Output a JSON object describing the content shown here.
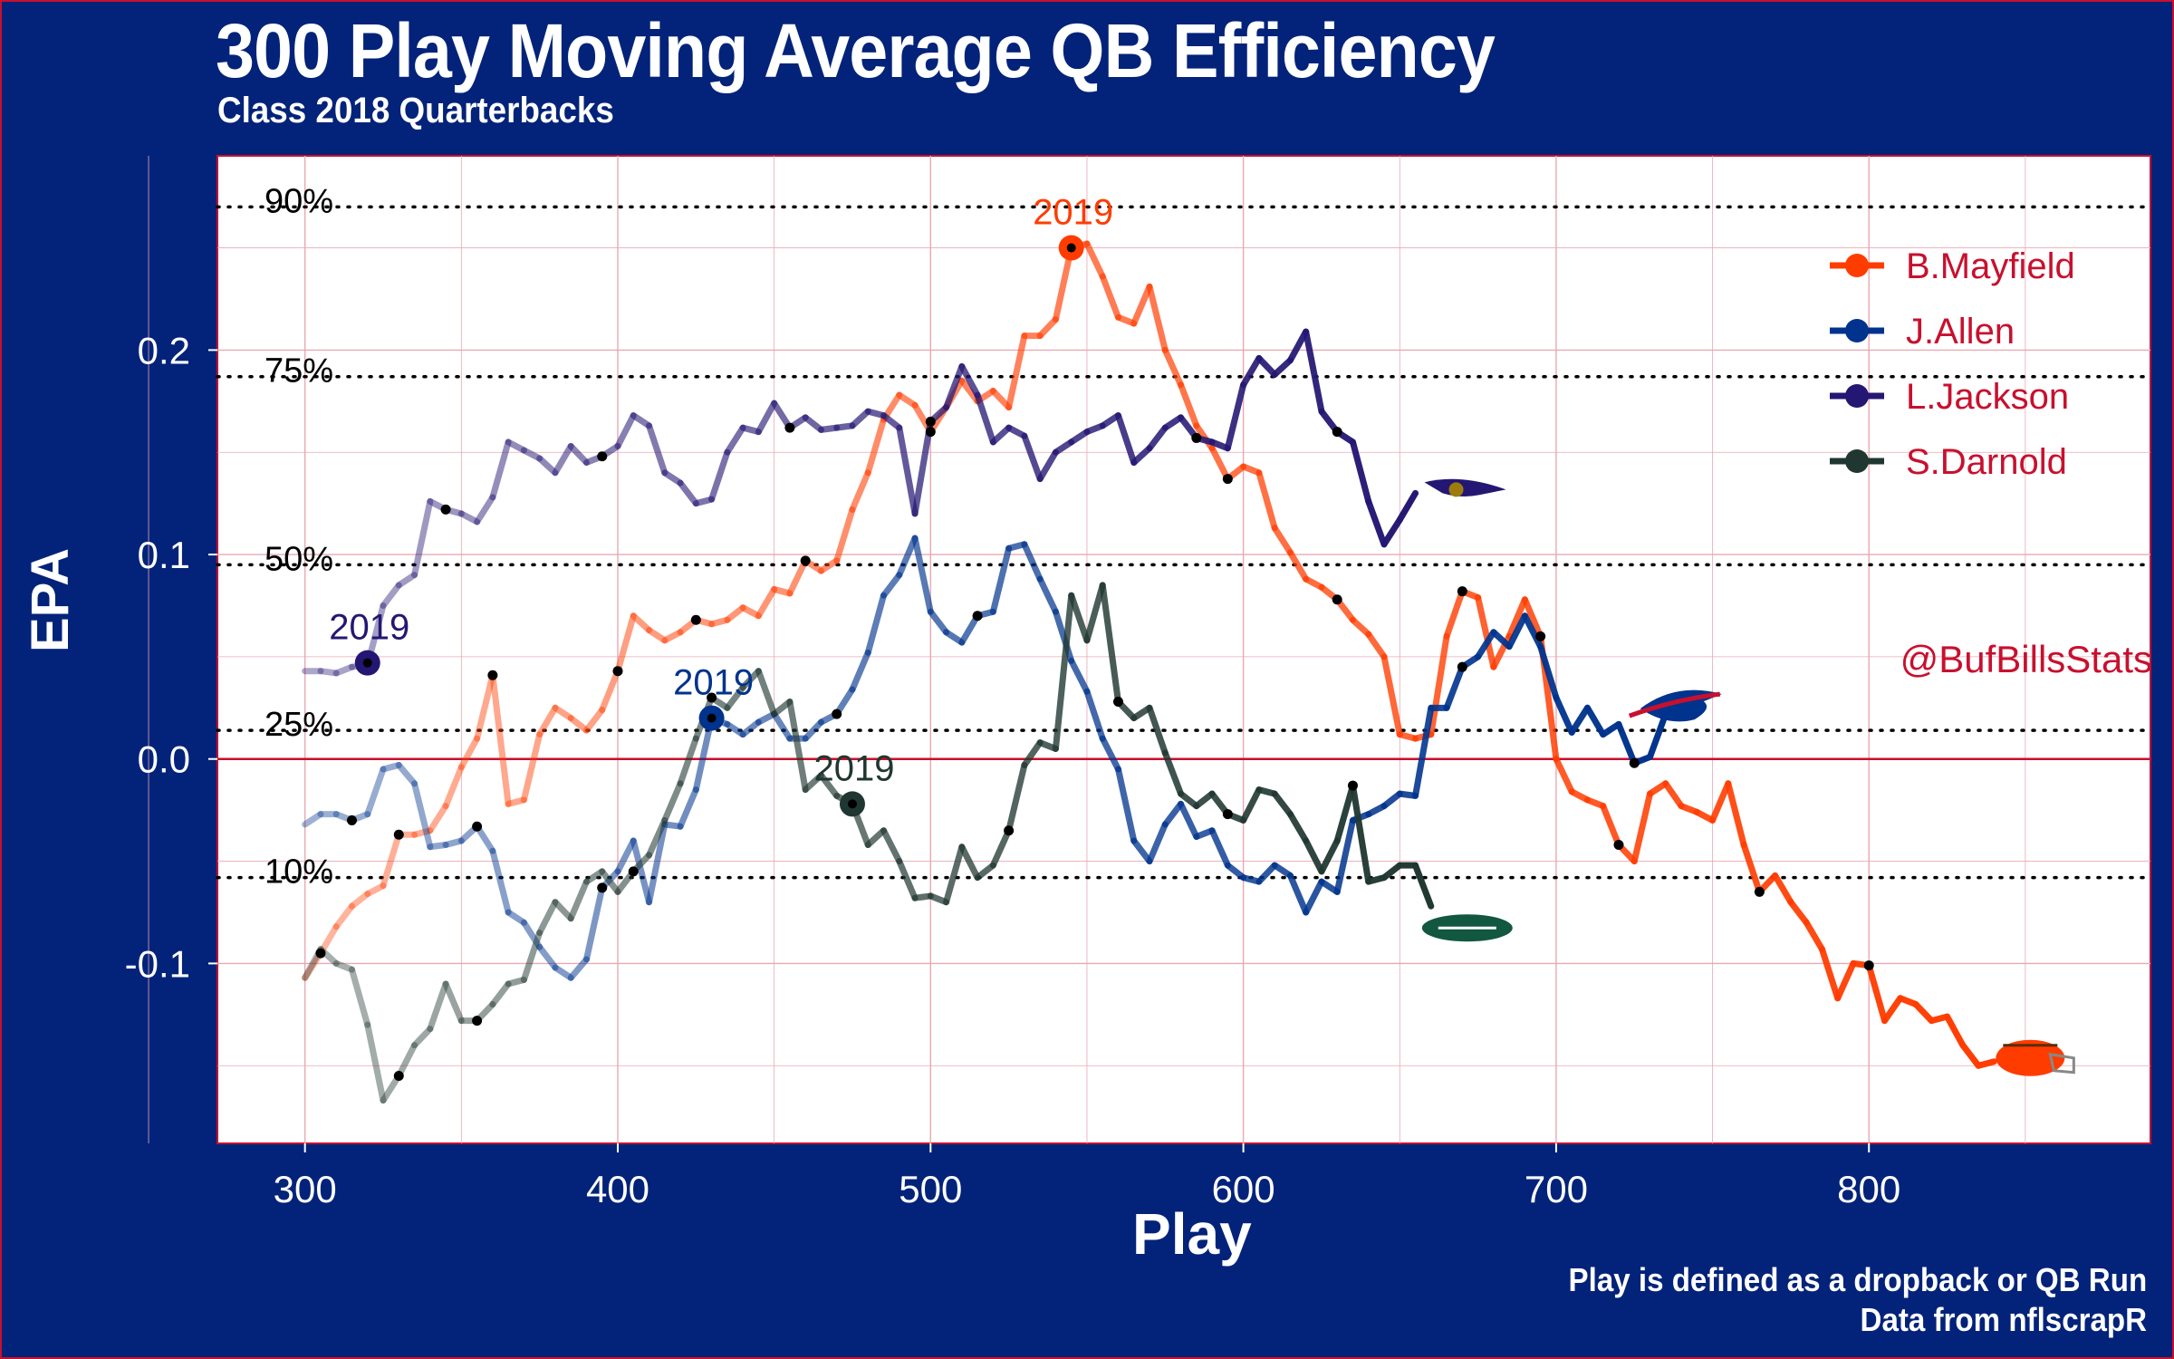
{
  "title": "300 Play Moving Average QB Efficiency",
  "subtitle": "Class 2018 Quarterbacks",
  "caption_line1": "Play is defined as a dropback or QB Run",
  "caption_line2": "Data from nflscrapR",
  "watermark": "@BufBillsStats",
  "colors": {
    "background": "#03237a",
    "panel": "#ffffff",
    "grid": "#e8a9b3",
    "frame": "#c8102e"
  },
  "chart_data": {
    "type": "line",
    "xlabel": "Play",
    "ylabel": "EPA",
    "xlim": [
      272,
      890
    ],
    "ylim": [
      -0.188,
      0.295
    ],
    "x_ticks": [
      300,
      400,
      500,
      600,
      700,
      800
    ],
    "x_tick_labels": [
      "300",
      "400",
      "500",
      "600",
      "700",
      "800"
    ],
    "y_ticks": [
      -0.1,
      0.0,
      0.1,
      0.2
    ],
    "y_tick_labels": [
      "-0.1",
      "0.0",
      "0.1",
      "0.2"
    ],
    "grid": true,
    "legend_position": "top-right",
    "percentile_lines": [
      {
        "label": "90%",
        "value": 0.27
      },
      {
        "label": "75%",
        "value": 0.187
      },
      {
        "label": "50%",
        "value": 0.095
      },
      {
        "label": "25%",
        "value": 0.014
      },
      {
        "label": "10%",
        "value": -0.058
      }
    ],
    "series": [
      {
        "name": "B.Mayfield",
        "color": "#ff3c00",
        "logo": "browns-helmet-icon",
        "x": [
          300,
          305,
          310,
          315,
          320,
          325,
          330,
          335,
          340,
          345,
          350,
          355,
          360,
          365,
          370,
          375,
          380,
          385,
          390,
          395,
          400,
          405,
          410,
          415,
          420,
          425,
          430,
          435,
          440,
          445,
          450,
          455,
          460,
          465,
          470,
          475,
          480,
          485,
          490,
          495,
          500,
          505,
          510,
          515,
          520,
          525,
          530,
          535,
          540,
          545,
          550,
          555,
          560,
          565,
          570,
          575,
          580,
          585,
          590,
          595,
          600,
          605,
          610,
          615,
          620,
          625,
          630,
          635,
          640,
          645,
          650,
          655,
          660,
          665,
          670,
          675,
          680,
          685,
          690,
          695,
          700,
          705,
          710,
          715,
          720,
          725,
          730,
          735,
          740,
          745,
          750,
          755,
          760,
          765,
          770,
          775,
          780,
          785,
          790,
          795,
          800,
          805,
          810,
          815,
          820,
          825,
          830,
          835,
          840
        ],
        "y": [
          -0.107,
          -0.095,
          -0.082,
          -0.072,
          -0.066,
          -0.062,
          -0.037,
          -0.037,
          -0.035,
          -0.023,
          -0.004,
          0.01,
          0.041,
          -0.022,
          -0.02,
          0.012,
          0.025,
          0.02,
          0.014,
          0.024,
          0.043,
          0.07,
          0.063,
          0.058,
          0.062,
          0.068,
          0.066,
          0.068,
          0.074,
          0.07,
          0.083,
          0.081,
          0.097,
          0.092,
          0.097,
          0.122,
          0.14,
          0.166,
          0.178,
          0.173,
          0.16,
          0.172,
          0.185,
          0.175,
          0.18,
          0.172,
          0.207,
          0.207,
          0.215,
          0.25,
          0.252,
          0.236,
          0.216,
          0.213,
          0.231,
          0.2,
          0.183,
          0.163,
          0.152,
          0.137,
          0.143,
          0.14,
          0.113,
          0.101,
          0.088,
          0.084,
          0.078,
          0.068,
          0.061,
          0.05,
          0.012,
          0.01,
          0.012,
          0.06,
          0.082,
          0.079,
          0.045,
          0.06,
          0.078,
          0.06,
          0.0,
          -0.016,
          -0.02,
          -0.023,
          -0.042,
          -0.05,
          -0.017,
          -0.012,
          -0.023,
          -0.026,
          -0.03,
          -0.012,
          -0.042,
          -0.065,
          -0.057,
          -0.07,
          -0.08,
          -0.093,
          -0.117,
          -0.1,
          -0.101,
          -0.128,
          -0.117,
          -0.12,
          -0.128,
          -0.126,
          -0.14,
          -0.15,
          -0.148
        ]
      },
      {
        "name": "J.Allen",
        "color": "#00338d",
        "logo": "bills-logo-icon",
        "x": [
          300,
          305,
          310,
          315,
          320,
          325,
          330,
          335,
          340,
          345,
          350,
          355,
          360,
          365,
          370,
          375,
          380,
          385,
          390,
          395,
          400,
          405,
          410,
          415,
          420,
          425,
          430,
          435,
          440,
          445,
          450,
          455,
          460,
          465,
          470,
          475,
          480,
          485,
          490,
          495,
          500,
          505,
          510,
          515,
          520,
          525,
          530,
          535,
          540,
          545,
          550,
          555,
          560,
          565,
          570,
          575,
          580,
          585,
          590,
          595,
          600,
          605,
          610,
          615,
          620,
          625,
          630,
          635,
          640,
          645,
          650,
          655,
          660,
          665,
          670,
          675,
          680,
          685,
          690,
          695,
          700,
          705,
          710,
          715,
          720,
          725,
          730,
          735
        ],
        "y": [
          -0.032,
          -0.027,
          -0.027,
          -0.03,
          -0.027,
          -0.005,
          -0.003,
          -0.012,
          -0.043,
          -0.042,
          -0.04,
          -0.033,
          -0.045,
          -0.075,
          -0.08,
          -0.092,
          -0.102,
          -0.107,
          -0.098,
          -0.063,
          -0.055,
          -0.04,
          -0.07,
          -0.032,
          -0.033,
          -0.015,
          0.02,
          0.017,
          0.012,
          0.018,
          0.022,
          0.01,
          0.01,
          0.018,
          0.022,
          0.034,
          0.052,
          0.08,
          0.09,
          0.108,
          0.072,
          0.062,
          0.057,
          0.07,
          0.072,
          0.103,
          0.105,
          0.088,
          0.072,
          0.048,
          0.033,
          0.01,
          -0.005,
          -0.04,
          -0.05,
          -0.032,
          -0.022,
          -0.038,
          -0.035,
          -0.052,
          -0.058,
          -0.06,
          -0.052,
          -0.057,
          -0.075,
          -0.06,
          -0.065,
          -0.03,
          -0.027,
          -0.023,
          -0.017,
          -0.018,
          0.025,
          0.025,
          0.045,
          0.05,
          0.062,
          0.055,
          0.07,
          0.055,
          0.03,
          0.013,
          0.025,
          0.012,
          0.017,
          -0.002,
          0.001,
          0.022
        ]
      },
      {
        "name": "L.Jackson",
        "color": "#241773",
        "logo": "ravens-logo-icon",
        "x": [
          300,
          305,
          310,
          315,
          320,
          325,
          330,
          335,
          340,
          345,
          350,
          355,
          360,
          365,
          370,
          375,
          380,
          385,
          390,
          395,
          400,
          405,
          410,
          415,
          420,
          425,
          430,
          435,
          440,
          445,
          450,
          455,
          460,
          465,
          470,
          475,
          480,
          485,
          490,
          495,
          500,
          505,
          510,
          515,
          520,
          525,
          530,
          535,
          540,
          545,
          550,
          555,
          560,
          565,
          570,
          575,
          580,
          585,
          590,
          595,
          600,
          605,
          610,
          615,
          620,
          625,
          630,
          635,
          640,
          645,
          650,
          655
        ],
        "y": [
          0.043,
          0.043,
          0.042,
          0.045,
          0.046,
          0.075,
          0.085,
          0.09,
          0.126,
          0.122,
          0.12,
          0.116,
          0.128,
          0.155,
          0.151,
          0.147,
          0.14,
          0.153,
          0.145,
          0.148,
          0.153,
          0.168,
          0.163,
          0.14,
          0.135,
          0.125,
          0.127,
          0.15,
          0.162,
          0.16,
          0.174,
          0.162,
          0.167,
          0.161,
          0.162,
          0.163,
          0.17,
          0.168,
          0.162,
          0.12,
          0.165,
          0.172,
          0.192,
          0.178,
          0.155,
          0.162,
          0.158,
          0.137,
          0.15,
          0.155,
          0.16,
          0.163,
          0.168,
          0.145,
          0.152,
          0.162,
          0.167,
          0.157,
          0.155,
          0.152,
          0.183,
          0.196,
          0.188,
          0.195,
          0.209,
          0.17,
          0.16,
          0.155,
          0.126,
          0.105,
          0.117,
          0.13
        ]
      },
      {
        "name": "S.Darnold",
        "color": "#203731",
        "logo": "jets-logo-icon",
        "x": [
          300,
          305,
          310,
          315,
          320,
          325,
          330,
          335,
          340,
          345,
          350,
          355,
          360,
          365,
          370,
          375,
          380,
          385,
          390,
          395,
          400,
          405,
          410,
          415,
          420,
          425,
          430,
          435,
          440,
          445,
          450,
          455,
          460,
          465,
          470,
          475,
          480,
          485,
          490,
          495,
          500,
          505,
          510,
          515,
          520,
          525,
          530,
          535,
          540,
          545,
          550,
          555,
          560,
          565,
          570,
          575,
          580,
          585,
          590,
          595,
          600,
          605,
          610,
          615,
          620,
          625,
          630,
          635,
          640,
          645,
          650,
          655,
          660
        ],
        "y": [
          -0.107,
          -0.093,
          -0.1,
          -0.103,
          -0.13,
          -0.167,
          -0.155,
          -0.14,
          -0.132,
          -0.11,
          -0.128,
          -0.128,
          -0.12,
          -0.11,
          -0.108,
          -0.085,
          -0.07,
          -0.078,
          -0.06,
          -0.055,
          -0.065,
          -0.055,
          -0.047,
          -0.03,
          -0.012,
          0.01,
          0.03,
          0.025,
          0.035,
          0.043,
          0.022,
          0.028,
          -0.015,
          -0.008,
          -0.018,
          -0.022,
          -0.042,
          -0.035,
          -0.05,
          -0.068,
          -0.067,
          -0.07,
          -0.043,
          -0.058,
          -0.052,
          -0.035,
          -0.003,
          0.008,
          0.005,
          0.08,
          0.058,
          0.085,
          0.028,
          0.02,
          0.025,
          0.003,
          -0.017,
          -0.023,
          -0.017,
          -0.027,
          -0.03,
          -0.015,
          -0.017,
          -0.027,
          -0.04,
          -0.055,
          -0.04,
          -0.013,
          -0.06,
          -0.058,
          -0.052,
          -0.052,
          -0.072
        ]
      }
    ],
    "marker_2019": [
      {
        "series": "B.Mayfield",
        "x": 545,
        "y": 0.25,
        "label": "2019"
      },
      {
        "series": "J.Allen",
        "x": 430,
        "y": 0.02,
        "label": "2019"
      },
      {
        "series": "L.Jackson",
        "x": 320,
        "y": 0.047,
        "label": "2019"
      },
      {
        "series": "S.Darnold",
        "x": 475,
        "y": -0.022,
        "label": "2019"
      }
    ],
    "game_markers": [
      {
        "series": "B.Mayfield",
        "x": [
          305,
          330,
          360,
          400,
          425,
          460,
          500,
          545,
          595,
          630,
          670,
          695,
          720,
          765,
          800
        ]
      },
      {
        "series": "J.Allen",
        "x": [
          315,
          355,
          395,
          470,
          515,
          670,
          725
        ]
      },
      {
        "series": "L.Jackson",
        "x": [
          345,
          395,
          455,
          500,
          585,
          630
        ]
      },
      {
        "series": "S.Darnold",
        "x": [
          330,
          355,
          405,
          430,
          525,
          560,
          595,
          635
        ]
      }
    ]
  }
}
